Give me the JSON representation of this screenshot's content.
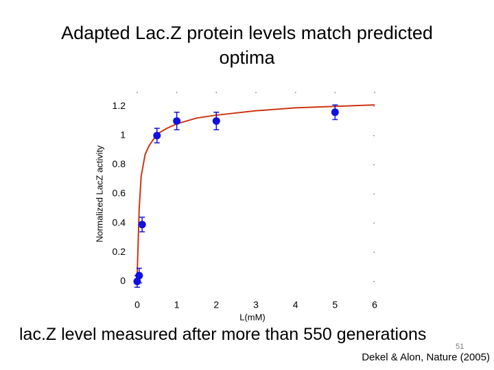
{
  "slide": {
    "title": "Adapted Lac.Z protein levels match predicted optima",
    "caption": "lac.Z level measured after more than 550 generations",
    "page_number": "51",
    "citation": "Dekel & Alon, Nature (2005)"
  },
  "chart_data": {
    "type": "scatter",
    "xlabel": "L(mM)",
    "ylabel": "Normalized LacZ activity",
    "xlim": [
      -0.1,
      6
    ],
    "ylim": [
      -0.1,
      1.3
    ],
    "xticks": [
      0,
      1,
      2,
      3,
      4,
      5,
      6
    ],
    "yticks": [
      0,
      0.2,
      0.4,
      0.6,
      0.8,
      1,
      1.2
    ],
    "points": {
      "color": "#1010e0",
      "x": [
        0,
        0.05,
        0.125,
        0.5,
        1,
        2,
        5
      ],
      "values": [
        0,
        0.04,
        0.39,
        1.0,
        1.1,
        1.1,
        1.16
      ],
      "errors": [
        0.04,
        0.05,
        0.05,
        0.05,
        0.06,
        0.06,
        0.05
      ]
    },
    "fit": {
      "color": "#cc3311",
      "x": [
        0,
        0.05,
        0.1,
        0.2,
        0.3,
        0.5,
        0.75,
        1,
        1.5,
        2,
        3,
        4,
        5,
        6
      ],
      "values": [
        0.05,
        0.5,
        0.72,
        0.87,
        0.93,
        1.01,
        1.05,
        1.08,
        1.12,
        1.14,
        1.17,
        1.19,
        1.2,
        1.21
      ]
    }
  }
}
